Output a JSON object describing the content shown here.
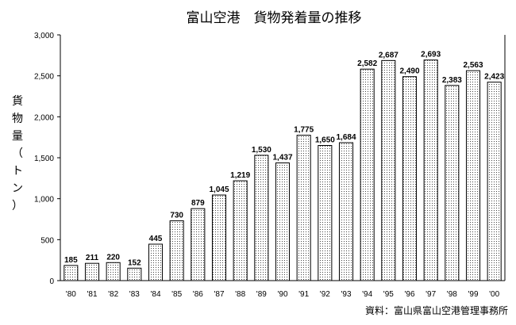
{
  "chart_data": {
    "type": "bar",
    "title": "富山空港　貨物発着量の推移",
    "ylabel": "貨物量（トン）",
    "xlabel": "",
    "source": "資料：富山県富山空港管理事務所",
    "categories": [
      "'80",
      "'81",
      "'82",
      "'83",
      "'84",
      "'85",
      "'86",
      "'87",
      "'88",
      "'89",
      "'90",
      "'91",
      "'92",
      "'93",
      "'94",
      "'95",
      "'96",
      "'97",
      "'98",
      "'99",
      "'00"
    ],
    "values": [
      185,
      211,
      220,
      152,
      445,
      730,
      879,
      1045,
      1219,
      1530,
      1437,
      1775,
      1650,
      1684,
      2582,
      2687,
      2490,
      2693,
      2383,
      2563,
      2423
    ],
    "data_labels": [
      "185",
      "211",
      "220",
      "152",
      "445",
      "730",
      "879",
      "1,045",
      "1,219",
      "1,530",
      "1,437",
      "1,775",
      "1,650",
      "1,684",
      "2,582",
      "2,687",
      "2,490",
      "2,693",
      "2,383",
      "2,563",
      "2,423"
    ],
    "ylim": [
      0,
      3000
    ],
    "yticks": [
      0,
      500,
      1000,
      1500,
      2000,
      2500,
      3000
    ],
    "ytick_labels": [
      "0",
      "500",
      "1,000",
      "1,500",
      "2,000",
      "2,500",
      "3,000"
    ],
    "grid": false,
    "legend": "none",
    "bar_fill": "dotted"
  }
}
